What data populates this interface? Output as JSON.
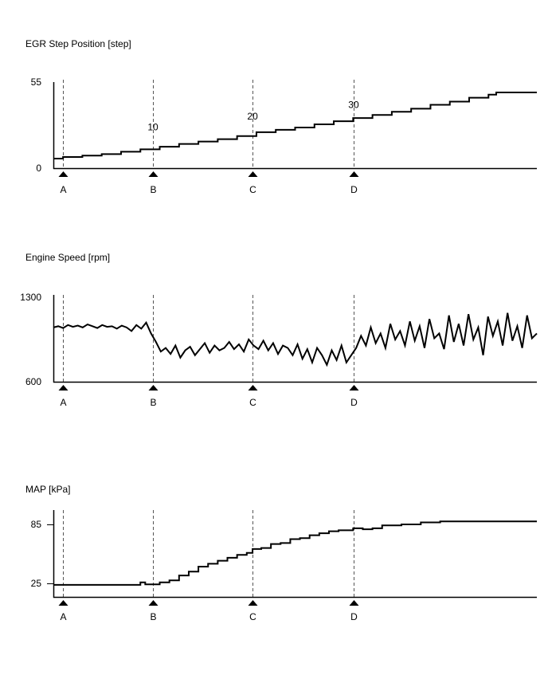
{
  "chart_data": [
    {
      "type": "line",
      "title": "EGR Step Position [step]",
      "xlabel": "",
      "ylabel": "",
      "xlim": [
        0,
        100
      ],
      "ylim": [
        0,
        55
      ],
      "yticks": [
        "55",
        "0"
      ],
      "ytick_values": [
        55,
        0
      ],
      "markers": [
        {
          "label": "A",
          "x": 2
        },
        {
          "label": "B",
          "x": 20.6
        },
        {
          "label": "C",
          "x": 41.2
        },
        {
          "label": "D",
          "x": 62.1
        }
      ],
      "annotations": [
        {
          "text": "10",
          "x": 20.6,
          "y": 20
        },
        {
          "text": "20",
          "x": 41.2,
          "y": 27
        },
        {
          "text": "30",
          "x": 62.1,
          "y": 34.5
        }
      ],
      "step": true,
      "series": [
        {
          "name": "EGR Step Position",
          "points": [
            [
              0,
              6.1
            ],
            [
              2,
              7.1
            ],
            [
              6,
              8
            ],
            [
              10,
              9
            ],
            [
              14,
              10.5
            ],
            [
              18,
              12
            ],
            [
              22,
              13.7
            ],
            [
              26,
              15.5
            ],
            [
              30,
              17
            ],
            [
              34,
              18.5
            ],
            [
              38,
              20.5
            ],
            [
              42,
              23
            ],
            [
              46,
              24.5
            ],
            [
              50,
              26
            ],
            [
              54,
              28
            ],
            [
              58,
              30
            ],
            [
              62,
              32
            ],
            [
              66,
              34
            ],
            [
              70,
              36
            ],
            [
              74,
              38
            ],
            [
              78,
              40.5
            ],
            [
              82,
              42.5
            ],
            [
              86,
              45
            ],
            [
              90,
              47
            ],
            [
              91.6,
              48.4
            ],
            [
              100,
              48.4
            ]
          ]
        }
      ]
    },
    {
      "type": "line",
      "title": "Engine Speed [rpm]",
      "xlabel": "",
      "ylabel": "",
      "xlim": [
        0,
        100
      ],
      "ylim": [
        600,
        1300
      ],
      "yticks": [
        "1300",
        "600"
      ],
      "ytick_values": [
        1300,
        600
      ],
      "markers": [
        {
          "label": "A",
          "x": 2
        },
        {
          "label": "B",
          "x": 20.6
        },
        {
          "label": "C",
          "x": 41.2
        },
        {
          "label": "D",
          "x": 62.1
        }
      ],
      "annotations": [],
      "step": false,
      "series": [
        {
          "name": "Engine Speed",
          "values": [
            1050,
            1060,
            1045,
            1070,
            1055,
            1065,
            1050,
            1075,
            1060,
            1045,
            1070,
            1055,
            1060,
            1040,
            1065,
            1050,
            1020,
            1070,
            1040,
            1090,
            1000,
            930,
            850,
            880,
            830,
            900,
            800,
            860,
            890,
            820,
            870,
            920,
            840,
            900,
            860,
            880,
            930,
            870,
            910,
            850,
            950,
            900,
            870,
            940,
            860,
            920,
            830,
            900,
            880,
            820,
            910,
            790,
            870,
            760,
            880,
            820,
            740,
            860,
            780,
            900,
            760,
            820,
            880,
            980,
            900,
            1050,
            920,
            1000,
            880,
            1080,
            950,
            1020,
            900,
            1100,
            940,
            1060,
            880,
            1120,
            960,
            1000,
            870,
            1150,
            930,
            1080,
            900,
            1160,
            950,
            1050,
            820,
            1140,
            980,
            1100,
            900,
            1170,
            940,
            1060,
            880,
            1150,
            960,
            1000
          ]
        }
      ]
    },
    {
      "type": "line",
      "title": "MAP [kPa]",
      "xlabel": "",
      "ylabel": "",
      "xlim": [
        0,
        100
      ],
      "ylim": [
        11.2,
        99.6
      ],
      "yticks": [
        "85",
        "25"
      ],
      "ytick_values": [
        85,
        25
      ],
      "markers": [
        {
          "label": "A",
          "x": 2
        },
        {
          "label": "B",
          "x": 20.6
        },
        {
          "label": "C",
          "x": 41.2
        },
        {
          "label": "D",
          "x": 62.1
        }
      ],
      "annotations": [],
      "step": true,
      "series": [
        {
          "name": "MAP",
          "points": [
            [
              0,
              23.5
            ],
            [
              17.5,
              23.5
            ],
            [
              18,
              26
            ],
            [
              19,
              24
            ],
            [
              21,
              24
            ],
            [
              22,
              26
            ],
            [
              24,
              28
            ],
            [
              26,
              33
            ],
            [
              28,
              37
            ],
            [
              30,
              42
            ],
            [
              32,
              45
            ],
            [
              34,
              48
            ],
            [
              36,
              51
            ],
            [
              38,
              54
            ],
            [
              40,
              56
            ],
            [
              41.2,
              60
            ],
            [
              43,
              61
            ],
            [
              45,
              65
            ],
            [
              47,
              66
            ],
            [
              49,
              70
            ],
            [
              51,
              71
            ],
            [
              53,
              74
            ],
            [
              55,
              76
            ],
            [
              57,
              78
            ],
            [
              59,
              79
            ],
            [
              62,
              81
            ],
            [
              64,
              80
            ],
            [
              66,
              81
            ],
            [
              68,
              84
            ],
            [
              72,
              85
            ],
            [
              76,
              87
            ],
            [
              80,
              88
            ],
            [
              100,
              88
            ]
          ]
        }
      ]
    }
  ]
}
